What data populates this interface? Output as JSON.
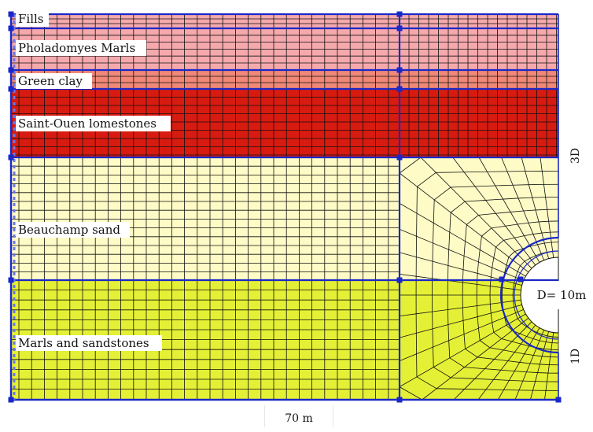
{
  "layers": [
    {
      "name": "Fills",
      "color": "#f5a9ad"
    },
    {
      "name": "Pholadomyes Marls",
      "color": "#f5a9ad"
    },
    {
      "name": "Green clay",
      "color": "#ef8877"
    },
    {
      "name": "Saint-Ouen lomestones",
      "color": "#d81b10"
    },
    {
      "name": "Beauchamp sand",
      "color": "#fefbc6"
    },
    {
      "name": "Marls and sandstones",
      "color": "#e4f035"
    }
  ],
  "dimensions": {
    "width": "70 m",
    "diameter": "D= 10m",
    "above": "3D",
    "below": "1D"
  },
  "colors": {
    "mesh_line": "#111111",
    "boundary": "#1a28c8",
    "background": "#ffffff"
  }
}
